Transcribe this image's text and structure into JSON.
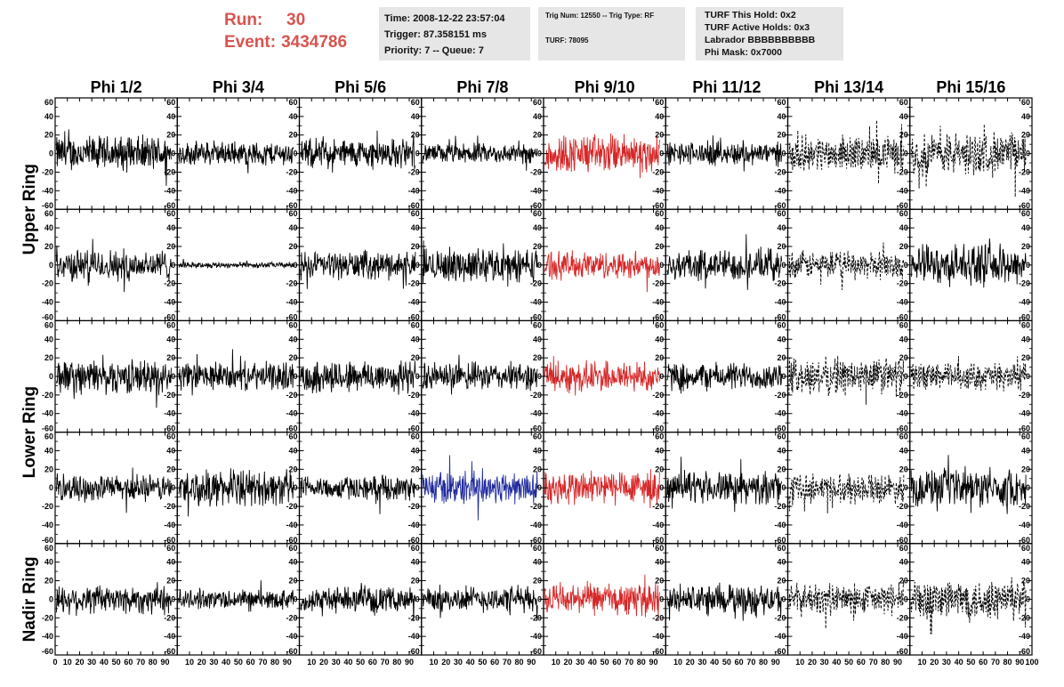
{
  "header": {
    "run_label": "Run:",
    "run_value": "30",
    "event_label": "Event:",
    "event_value": "3434786"
  },
  "info_box_1": {
    "time": "Time: 2008-12-22 23:57:04",
    "trigger": "Trigger: 87.358151 ms",
    "priority": "Priority: 7 -- Queue: 7"
  },
  "info_box_2": {
    "trig": "Trig Num: 12550 -- Trig Type: RF",
    "turf": "TURF: 78095"
  },
  "info_box_3": {
    "hold": "TURF This Hold: 0x2",
    "active": "TURF Active Holds: 0x3",
    "labrador": "Labrador BBBBBBBBBB",
    "phimask": "Phi Mask: 0x7000"
  },
  "chart_data": {
    "type": "line",
    "columns": [
      "Phi 1/2",
      "Phi 3/4",
      "Phi 5/6",
      "Phi 7/8",
      "Phi 9/10",
      "Phi 11/12",
      "Phi 13/14",
      "Phi 15/16"
    ],
    "rings": [
      "Upper Ring",
      "Lower Ring",
      "Nadir Ring"
    ],
    "row_ring_index": [
      0,
      0,
      1,
      1,
      2
    ],
    "xlim": [
      0,
      100
    ],
    "ylim": [
      -60,
      60
    ],
    "x_ticks": [
      0,
      10,
      20,
      30,
      40,
      50,
      60,
      70,
      80,
      90,
      100
    ],
    "x_tick_labels": [
      "0",
      "10",
      "20",
      "30",
      "40",
      "50",
      "60",
      "70",
      "80",
      "90",
      "100"
    ],
    "y_ticks": [
      -60,
      -40,
      -20,
      0,
      20,
      40,
      60
    ],
    "y_tick_labels": [
      "-60",
      "-40",
      "-20",
      "0",
      "20",
      "40",
      "60"
    ],
    "colors": {
      "normal": "#000000",
      "red": "#d62728",
      "blue": "#1f2a9e"
    },
    "panels": [
      [
        {
          "color": "normal",
          "amp": 18,
          "style": "solid"
        },
        {
          "color": "normal",
          "amp": 12,
          "style": "solid"
        },
        {
          "color": "normal",
          "amp": 15,
          "style": "solid"
        },
        {
          "color": "normal",
          "amp": 10,
          "style": "solid"
        },
        {
          "color": "red",
          "amp": 20,
          "style": "solid"
        },
        {
          "color": "normal",
          "amp": 12,
          "style": "solid"
        },
        {
          "color": "normal",
          "amp": 18,
          "style": "dashed"
        },
        {
          "color": "normal",
          "amp": 22,
          "style": "dashed"
        }
      ],
      [
        {
          "color": "normal",
          "amp": 16,
          "style": "solid"
        },
        {
          "color": "normal",
          "amp": 3,
          "style": "solid"
        },
        {
          "color": "normal",
          "amp": 14,
          "style": "solid"
        },
        {
          "color": "normal",
          "amp": 17,
          "style": "solid"
        },
        {
          "color": "red",
          "amp": 14,
          "style": "solid"
        },
        {
          "color": "normal",
          "amp": 16,
          "style": "solid"
        },
        {
          "color": "normal",
          "amp": 14,
          "style": "dashed"
        },
        {
          "color": "normal",
          "amp": 20,
          "style": "solid"
        }
      ],
      [
        {
          "color": "normal",
          "amp": 17,
          "style": "solid"
        },
        {
          "color": "normal",
          "amp": 14,
          "style": "solid"
        },
        {
          "color": "normal",
          "amp": 17,
          "style": "solid"
        },
        {
          "color": "normal",
          "amp": 14,
          "style": "solid"
        },
        {
          "color": "red",
          "amp": 16,
          "style": "solid"
        },
        {
          "color": "normal",
          "amp": 14,
          "style": "solid"
        },
        {
          "color": "normal",
          "amp": 19,
          "style": "dashed"
        },
        {
          "color": "normal",
          "amp": 14,
          "style": "dashed"
        }
      ],
      [
        {
          "color": "normal",
          "amp": 13,
          "style": "solid"
        },
        {
          "color": "normal",
          "amp": 18,
          "style": "solid"
        },
        {
          "color": "normal",
          "amp": 12,
          "style": "solid"
        },
        {
          "color": "blue",
          "amp": 17,
          "style": "solid"
        },
        {
          "color": "red",
          "amp": 18,
          "style": "solid"
        },
        {
          "color": "normal",
          "amp": 16,
          "style": "solid"
        },
        {
          "color": "normal",
          "amp": 15,
          "style": "dashed"
        },
        {
          "color": "normal",
          "amp": 19,
          "style": "solid"
        }
      ],
      [
        {
          "color": "normal",
          "amp": 15,
          "style": "solid"
        },
        {
          "color": "normal",
          "amp": 10,
          "style": "solid"
        },
        {
          "color": "normal",
          "amp": 12,
          "style": "solid"
        },
        {
          "color": "normal",
          "amp": 13,
          "style": "solid"
        },
        {
          "color": "red",
          "amp": 16,
          "style": "solid"
        },
        {
          "color": "normal",
          "amp": 15,
          "style": "solid"
        },
        {
          "color": "normal",
          "amp": 16,
          "style": "dashed"
        },
        {
          "color": "normal",
          "amp": 22,
          "style": "dashed"
        }
      ]
    ]
  }
}
